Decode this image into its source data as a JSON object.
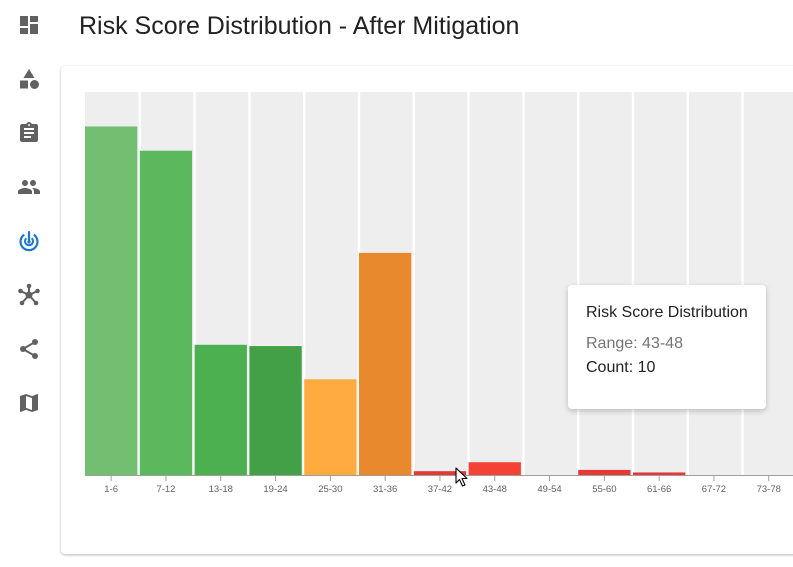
{
  "page": {
    "title": "Risk Score Distribution - After Mitigation"
  },
  "sidebar": {
    "items": [
      {
        "icon": "dashboard-icon",
        "active": false
      },
      {
        "icon": "shapes-icon",
        "active": false
      },
      {
        "icon": "clipboard-icon",
        "active": false
      },
      {
        "icon": "people-icon",
        "active": false
      },
      {
        "icon": "radar-icon",
        "active": true
      },
      {
        "icon": "hub-icon",
        "active": false
      },
      {
        "icon": "share-icon",
        "active": false
      },
      {
        "icon": "map-icon",
        "active": false
      }
    ]
  },
  "colors": {
    "sidebar_icon": "#616161",
    "sidebar_active": "#1976d2",
    "plot_background": "#eeeeee"
  },
  "chart_data": {
    "type": "bar",
    "title": "",
    "xlabel": "",
    "ylabel": "",
    "categories": [
      "1-6",
      "7-12",
      "13-18",
      "19-24",
      "25-30",
      "31-36",
      "37-42",
      "43-48",
      "49-54",
      "55-60",
      "61-66",
      "67-72",
      "73-78"
    ],
    "values": [
      27.3,
      25.4,
      10.2,
      10.1,
      7.5,
      17.4,
      0.3,
      1.0,
      0,
      0.4,
      0.2,
      0,
      0
    ],
    "colors": [
      "#72bf72",
      "#5cb85c",
      "#4caf50",
      "#43a047",
      "#ffab40",
      "#e8892e",
      "#e53935",
      "#f44336",
      "#f44336",
      "#e53935",
      "#e53935",
      "#f44336",
      "#f44336"
    ],
    "ylim": [
      0,
      30
    ],
    "grid": true,
    "legend": "none"
  },
  "tooltip": {
    "title": "Risk Score Distribution",
    "range": "Range: 43-48",
    "count": "Count: 10"
  }
}
